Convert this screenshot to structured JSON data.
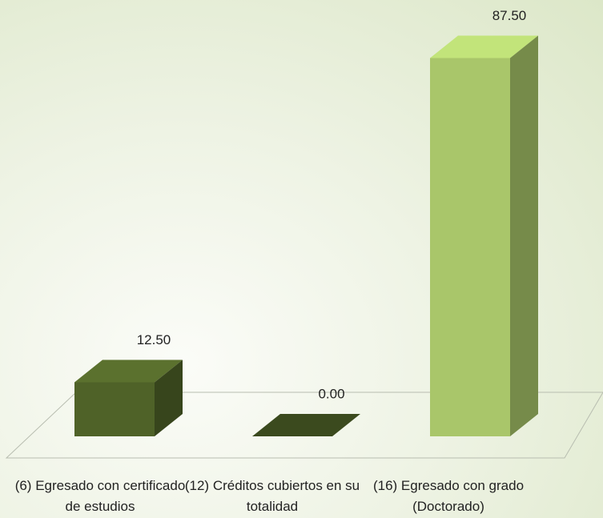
{
  "chart_data": {
    "type": "bar3d",
    "categories": [
      "(6) Egresado con certificado de estudios",
      "(12) Créditos cubiertos en su totalidad",
      "(16) Egresado con grado (Doctorado)"
    ],
    "values": [
      12.5,
      0,
      87.5
    ],
    "value_labels": [
      "12.50",
      "0.00",
      "87.50"
    ],
    "colors": [
      "#4f6228",
      "#4f6228",
      "#a9c66a"
    ]
  }
}
